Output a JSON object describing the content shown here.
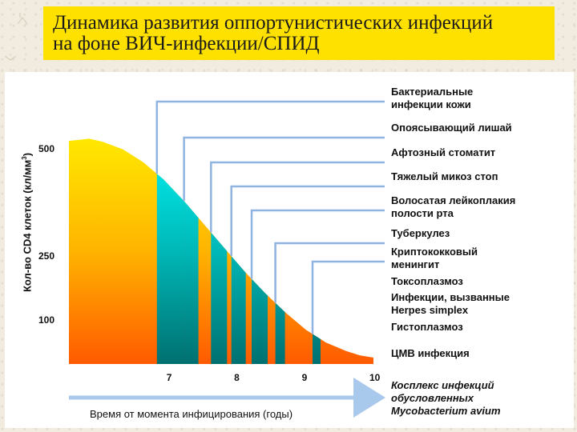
{
  "title": {
    "line1": "Динамика развития оппортунистических инфекций",
    "line2": "на фоне ВИЧ-инфекции/СПИД"
  },
  "colors": {
    "banner": "#ffe100",
    "curve_top": "#ffe800",
    "curve_bottom": "#ff5a00",
    "band_top": "#00ffff",
    "band_bottom": "#008080",
    "leader_lines": "#8fb4e2",
    "time_arrow": "#a8c8ec"
  },
  "chart_data": {
    "type": "area",
    "ylabel_main": "Кол-во CD4 клеток (кл/мм",
    "ylabel_sup": "3",
    "ylabel_close": ")",
    "xlabel": "Время от момента инфицирования (годы)",
    "y_ticks": [
      {
        "label": "500",
        "value": 500
      },
      {
        "label": "250",
        "value": 250
      },
      {
        "label": "100",
        "value": 100
      }
    ],
    "x_ticks": [
      {
        "label": "7",
        "value": 7
      },
      {
        "label": "8",
        "value": 8
      },
      {
        "label": "9",
        "value": 9
      },
      {
        "label": "10",
        "value": 10
      }
    ],
    "xlim": [
      5.5,
      10
    ],
    "ylim": [
      0,
      550
    ],
    "curve": {
      "x": [
        5.5,
        5.8,
        6.0,
        6.3,
        6.6,
        6.9,
        7.2,
        7.5,
        7.8,
        8.1,
        8.4,
        8.7,
        9.0,
        9.3,
        9.6,
        9.8,
        10.0
      ],
      "y": [
        520,
        525,
        518,
        500,
        470,
        430,
        380,
        325,
        270,
        215,
        165,
        120,
        80,
        50,
        30,
        20,
        15
      ]
    },
    "infections": [
      {
        "label_lines": [
          "Бактериальные",
          "инфекции кожи"
        ],
        "onset_x": 6.8
      },
      {
        "label_lines": [
          "Опоясывающий лишай"
        ],
        "onset_x": 7.2
      },
      {
        "label_lines": [
          "Афтозный стоматит"
        ],
        "onset_x": 7.6
      },
      {
        "label_lines": [
          "Тяжелый микоз стоп"
        ],
        "onset_x": 7.9
      },
      {
        "label_lines": [
          "Волосатая лейкоплакия",
          "полости рта"
        ],
        "onset_x": 8.2
      },
      {
        "label_lines": [
          "Туберкулез"
        ],
        "onset_x": 8.55
      },
      {
        "label_lines": [
          "Криптококковый",
          "менингит"
        ],
        "onset_x": 9.1
      },
      {
        "label_lines": [
          "Токсоплазмоз"
        ],
        "onset_x": null
      },
      {
        "label_lines": [
          "Инфекции, вызванные",
          "Herpes simplex"
        ],
        "onset_x": null
      },
      {
        "label_lines": [
          "Гистоплазмоз"
        ],
        "onset_x": null
      },
      {
        "label_lines": [
          "ЦМВ инфекция"
        ],
        "onset_x": null
      },
      {
        "label_lines": [
          "Косплекс инфекций",
          "обусловленных",
          "Mycobacterium avium"
        ],
        "onset_x": null,
        "italic": true
      }
    ]
  }
}
